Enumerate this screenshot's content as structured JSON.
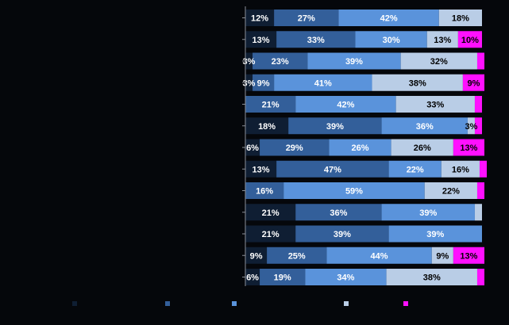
{
  "chart_data": {
    "type": "bar",
    "orientation": "horizontal",
    "stacked": true,
    "normalized": true,
    "xlim": [
      0,
      100
    ],
    "grid": false,
    "legend_position": "bottom",
    "row_labels_visible": false,
    "series": [
      {
        "name": "",
        "color": "#0f1e33",
        "values": [
          12,
          13,
          3,
          3,
          0,
          18,
          6,
          13,
          0,
          21,
          21,
          9,
          6
        ]
      },
      {
        "name": "",
        "color": "#335f9a",
        "values": [
          27,
          33,
          23,
          9,
          21,
          39,
          29,
          47,
          16,
          36,
          39,
          25,
          19
        ]
      },
      {
        "name": "",
        "color": "#5a93db",
        "values": [
          42,
          30,
          39,
          41,
          42,
          36,
          26,
          22,
          59,
          39,
          39,
          44,
          34
        ]
      },
      {
        "name": "",
        "color": "#b9cde6",
        "values": [
          18,
          13,
          32,
          38,
          33,
          3,
          26,
          16,
          22,
          3,
          0,
          9,
          38
        ]
      },
      {
        "name": "",
        "color": "#ff10ff",
        "values": [
          0,
          10,
          3,
          9,
          3,
          3,
          13,
          3,
          3,
          0,
          0,
          13,
          3
        ]
      }
    ],
    "data_labels": [
      [
        "12%",
        "27%",
        "42%",
        "18%",
        ""
      ],
      [
        "13%",
        "33%",
        "30%",
        "13%",
        "10%"
      ],
      [
        "3%",
        "23%",
        "39%",
        "32%",
        ""
      ],
      [
        "3%",
        "9%",
        "41%",
        "38%",
        "9%"
      ],
      [
        "",
        "21%",
        "42%",
        "33%",
        ""
      ],
      [
        "18%",
        "39%",
        "36%",
        "3%",
        ""
      ],
      [
        "6%",
        "29%",
        "26%",
        "26%",
        "13%"
      ],
      [
        "13%",
        "47%",
        "22%",
        "16%",
        ""
      ],
      [
        "",
        "16%",
        "59%",
        "22%",
        ""
      ],
      [
        "21%",
        "36%",
        "39%",
        "",
        ""
      ],
      [
        "21%",
        "39%",
        "39%",
        "",
        ""
      ],
      [
        "9%",
        "25%",
        "44%",
        "9%",
        "13%"
      ],
      [
        "6%",
        "19%",
        "34%",
        "38%",
        ""
      ]
    ],
    "label_colors": [
      "#ffffff",
      "#ffffff",
      "#ffffff",
      "#000000",
      "#000000"
    ]
  }
}
